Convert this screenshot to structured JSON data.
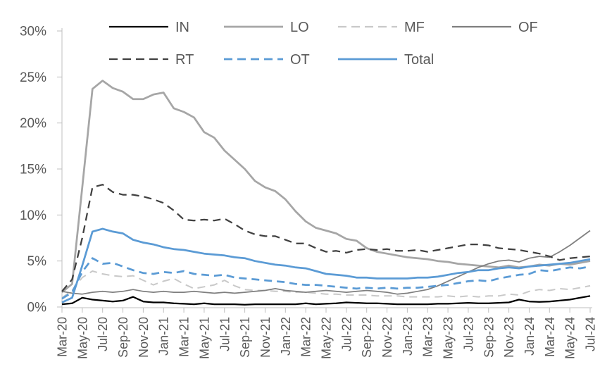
{
  "chart_data": {
    "type": "line",
    "title": "",
    "xlabel": "",
    "ylabel": "",
    "ylim": [
      0,
      30
    ],
    "grid": false,
    "legend_position": "top",
    "legend_rows": [
      [
        "IN",
        "LO",
        "MF",
        "OF"
      ],
      [
        "RT",
        "OT",
        "Total"
      ]
    ],
    "y_tick_labels": [
      "0%",
      "5%",
      "10%",
      "15%",
      "20%",
      "25%",
      "30%"
    ],
    "x_tick_labels": [
      "Mar-20",
      "May-20",
      "Jul-20",
      "Sep-20",
      "Nov-20",
      "Jan-21",
      "Mar-21",
      "May-21",
      "Jul-21",
      "Sep-21",
      "Nov-21",
      "Jan-22",
      "Mar-22",
      "May-22",
      "Jul-22",
      "Sep-22",
      "Nov-22",
      "Jan-23",
      "Mar-23",
      "May-23",
      "Jul-23",
      "Sep-23",
      "Nov-23",
      "Jan-24",
      "Mar-24",
      "May-24",
      "Jul-24"
    ],
    "x_points_count": 53,
    "x_tick_every": 2,
    "axis_color": "#bfbfbf",
    "label_color": "#595959",
    "series": [
      {
        "name": "IN",
        "color": "#000000",
        "style": "solid",
        "width": 2.25,
        "values": [
          0.3,
          0.4,
          1.0,
          0.8,
          0.7,
          0.6,
          0.7,
          1.1,
          0.6,
          0.5,
          0.5,
          0.4,
          0.35,
          0.3,
          0.4,
          0.3,
          0.3,
          0.3,
          0.25,
          0.3,
          0.3,
          0.3,
          0.3,
          0.3,
          0.4,
          0.3,
          0.35,
          0.4,
          0.5,
          0.45,
          0.4,
          0.4,
          0.35,
          0.3,
          0.3,
          0.3,
          0.3,
          0.35,
          0.35,
          0.4,
          0.45,
          0.4,
          0.4,
          0.45,
          0.5,
          0.8,
          0.6,
          0.55,
          0.6,
          0.7,
          0.8,
          1.0,
          1.2
        ]
      },
      {
        "name": "LO",
        "color": "#a6a6a6",
        "style": "solid",
        "width": 2.75,
        "values": [
          1.6,
          2.5,
          13.0,
          23.7,
          24.6,
          23.8,
          23.4,
          22.6,
          22.6,
          23.1,
          23.3,
          21.6,
          21.2,
          20.6,
          19.0,
          18.4,
          17.0,
          16.0,
          15.0,
          13.7,
          13.0,
          12.6,
          11.7,
          10.4,
          9.3,
          8.6,
          8.3,
          8.0,
          7.4,
          7.2,
          6.4,
          6.0,
          5.8,
          5.6,
          5.4,
          5.3,
          5.2,
          5.0,
          4.9,
          4.7,
          4.6,
          4.5,
          4.4,
          4.3,
          4.5,
          4.3,
          4.4,
          4.6,
          4.5,
          4.7,
          4.6,
          4.8,
          5.0
        ]
      },
      {
        "name": "MF",
        "color": "#c9c9c9",
        "style": "dashed",
        "width": 2,
        "values": [
          1.0,
          1.8,
          3.2,
          3.9,
          3.6,
          3.4,
          3.3,
          3.4,
          2.9,
          2.4,
          2.8,
          3.1,
          2.5,
          2.0,
          2.2,
          2.4,
          2.9,
          2.3,
          1.9,
          1.8,
          1.8,
          1.7,
          1.7,
          1.6,
          1.6,
          1.5,
          1.4,
          1.4,
          1.3,
          1.3,
          1.3,
          1.2,
          1.2,
          1.2,
          1.1,
          1.1,
          1.1,
          1.1,
          1.2,
          1.1,
          1.2,
          1.1,
          1.2,
          1.2,
          1.4,
          1.3,
          1.7,
          1.9,
          1.8,
          2.0,
          1.9,
          2.1,
          2.3
        ]
      },
      {
        "name": "OF",
        "color": "#7f7f7f",
        "style": "solid",
        "width": 1.75,
        "values": [
          1.7,
          1.5,
          1.4,
          1.6,
          1.7,
          1.6,
          1.7,
          1.9,
          1.7,
          1.6,
          1.7,
          1.6,
          1.6,
          1.7,
          1.6,
          1.5,
          1.6,
          1.5,
          1.6,
          1.7,
          1.8,
          2.0,
          1.8,
          1.7,
          1.6,
          1.7,
          1.8,
          1.7,
          1.6,
          1.7,
          1.8,
          1.7,
          1.6,
          1.4,
          1.5,
          1.7,
          1.9,
          2.3,
          2.8,
          3.3,
          3.8,
          4.3,
          4.7,
          5.0,
          5.1,
          4.9,
          5.3,
          5.5,
          5.4,
          6.0,
          6.7,
          7.5,
          8.3
        ]
      },
      {
        "name": "RT",
        "color": "#404040",
        "style": "dashed",
        "width": 2.25,
        "values": [
          1.7,
          3.0,
          7.5,
          13.0,
          13.3,
          12.5,
          12.2,
          12.2,
          12.0,
          11.7,
          11.3,
          10.5,
          9.5,
          9.4,
          9.5,
          9.4,
          9.6,
          9.0,
          8.3,
          7.9,
          7.7,
          7.7,
          7.3,
          6.9,
          6.9,
          6.4,
          6.0,
          6.1,
          5.9,
          6.2,
          6.3,
          6.2,
          6.3,
          6.1,
          6.1,
          6.2,
          6.0,
          6.2,
          6.4,
          6.6,
          6.8,
          6.8,
          6.7,
          6.4,
          6.3,
          6.2,
          6.0,
          5.8,
          5.5,
          5.1,
          5.3,
          5.4,
          5.5
        ]
      },
      {
        "name": "OT",
        "color": "#5b9bd5",
        "style": "dashed",
        "width": 2.75,
        "values": [
          0.9,
          1.6,
          3.8,
          5.3,
          4.7,
          4.8,
          4.4,
          4.0,
          3.7,
          3.6,
          3.8,
          3.7,
          3.9,
          3.6,
          3.5,
          3.4,
          3.5,
          3.2,
          3.1,
          3.0,
          2.9,
          2.8,
          2.7,
          2.5,
          2.4,
          2.4,
          2.3,
          2.2,
          2.1,
          2.0,
          2.1,
          2.0,
          2.1,
          2.0,
          2.1,
          2.1,
          2.2,
          2.3,
          2.4,
          2.6,
          2.8,
          2.9,
          2.8,
          3.1,
          3.3,
          3.5,
          3.6,
          4.0,
          3.9,
          4.1,
          4.3,
          4.2,
          4.4
        ]
      },
      {
        "name": "Total",
        "color": "#5b9bd5",
        "style": "solid",
        "width": 2.75,
        "values": [
          0.5,
          1.0,
          4.5,
          8.2,
          8.5,
          8.2,
          8.0,
          7.3,
          7.0,
          6.8,
          6.5,
          6.3,
          6.2,
          6.0,
          5.8,
          5.7,
          5.6,
          5.4,
          5.3,
          5.0,
          4.8,
          4.6,
          4.5,
          4.3,
          4.2,
          3.9,
          3.6,
          3.5,
          3.4,
          3.2,
          3.2,
          3.1,
          3.1,
          3.1,
          3.1,
          3.2,
          3.2,
          3.3,
          3.5,
          3.7,
          3.8,
          4.0,
          4.0,
          4.2,
          4.3,
          4.2,
          4.4,
          4.5,
          4.6,
          4.7,
          4.8,
          5.0,
          5.2
        ]
      }
    ]
  }
}
